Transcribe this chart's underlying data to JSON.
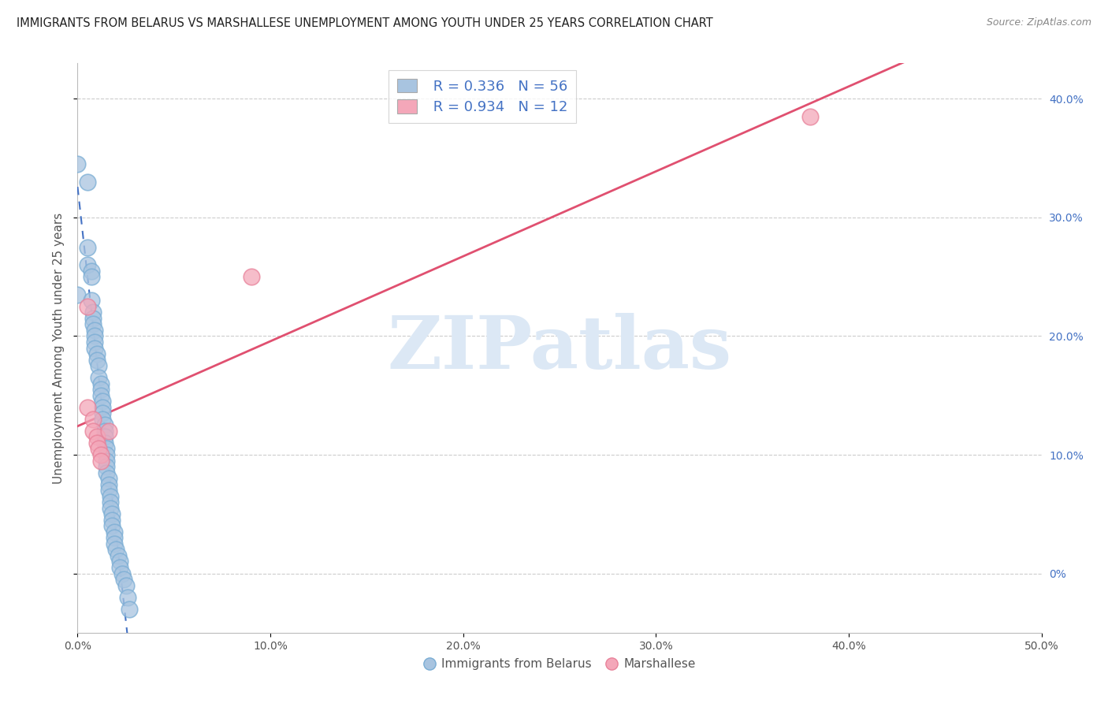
{
  "title": "IMMIGRANTS FROM BELARUS VS MARSHALLESE UNEMPLOYMENT AMONG YOUTH UNDER 25 YEARS CORRELATION CHART",
  "source": "Source: ZipAtlas.com",
  "ylabel": "Unemployment Among Youth under 25 years",
  "legend_labels": [
    "Immigrants from Belarus",
    "Marshallese"
  ],
  "legend_r": [
    0.336,
    0.934
  ],
  "legend_n": [
    56,
    12
  ],
  "blue_color": "#a8c4e0",
  "blue_edge_color": "#7aadd4",
  "pink_color": "#f4a7b9",
  "pink_edge_color": "#e8829a",
  "blue_line_color": "#4472c4",
  "pink_line_color": "#e05070",
  "watermark_text": "ZIPatlas",
  "watermark_color": "#dce8f5",
  "blue_dots": [
    [
      0.0,
      0.345
    ],
    [
      0.0,
      0.235
    ],
    [
      0.005,
      0.33
    ],
    [
      0.005,
      0.275
    ],
    [
      0.005,
      0.26
    ],
    [
      0.007,
      0.255
    ],
    [
      0.007,
      0.25
    ],
    [
      0.007,
      0.23
    ],
    [
      0.008,
      0.22
    ],
    [
      0.008,
      0.215
    ],
    [
      0.008,
      0.21
    ],
    [
      0.009,
      0.205
    ],
    [
      0.009,
      0.2
    ],
    [
      0.009,
      0.195
    ],
    [
      0.009,
      0.19
    ],
    [
      0.01,
      0.185
    ],
    [
      0.01,
      0.18
    ],
    [
      0.011,
      0.175
    ],
    [
      0.011,
      0.165
    ],
    [
      0.012,
      0.16
    ],
    [
      0.012,
      0.155
    ],
    [
      0.012,
      0.15
    ],
    [
      0.013,
      0.145
    ],
    [
      0.013,
      0.14
    ],
    [
      0.013,
      0.135
    ],
    [
      0.013,
      0.13
    ],
    [
      0.014,
      0.125
    ],
    [
      0.014,
      0.12
    ],
    [
      0.014,
      0.115
    ],
    [
      0.014,
      0.11
    ],
    [
      0.015,
      0.105
    ],
    [
      0.015,
      0.1
    ],
    [
      0.015,
      0.095
    ],
    [
      0.015,
      0.09
    ],
    [
      0.015,
      0.085
    ],
    [
      0.016,
      0.08
    ],
    [
      0.016,
      0.075
    ],
    [
      0.016,
      0.07
    ],
    [
      0.017,
      0.065
    ],
    [
      0.017,
      0.06
    ],
    [
      0.017,
      0.055
    ],
    [
      0.018,
      0.05
    ],
    [
      0.018,
      0.045
    ],
    [
      0.018,
      0.04
    ],
    [
      0.019,
      0.035
    ],
    [
      0.019,
      0.03
    ],
    [
      0.019,
      0.025
    ],
    [
      0.02,
      0.02
    ],
    [
      0.021,
      0.015
    ],
    [
      0.022,
      0.01
    ],
    [
      0.022,
      0.005
    ],
    [
      0.023,
      0.0
    ],
    [
      0.024,
      -0.005
    ],
    [
      0.025,
      -0.01
    ],
    [
      0.026,
      -0.02
    ],
    [
      0.027,
      -0.03
    ]
  ],
  "pink_dots": [
    [
      0.005,
      0.225
    ],
    [
      0.005,
      0.14
    ],
    [
      0.008,
      0.13
    ],
    [
      0.008,
      0.12
    ],
    [
      0.01,
      0.115
    ],
    [
      0.01,
      0.11
    ],
    [
      0.011,
      0.105
    ],
    [
      0.012,
      0.1
    ],
    [
      0.012,
      0.095
    ],
    [
      0.016,
      0.12
    ],
    [
      0.38,
      0.385
    ],
    [
      0.09,
      0.25
    ]
  ],
  "xlim": [
    0.0,
    0.5
  ],
  "ylim": [
    -0.05,
    0.43
  ],
  "xticks": [
    0.0,
    0.1,
    0.2,
    0.3,
    0.4,
    0.5
  ],
  "yticks": [
    0.0,
    0.1,
    0.2,
    0.3,
    0.4
  ],
  "ytick_right_labels": [
    "0%",
    "10.0%",
    "20.0%",
    "30.0%",
    "40.0%"
  ],
  "xtick_labels": [
    "0.0%",
    "10.0%",
    "20.0%",
    "30.0%",
    "40.0%",
    "50.0%"
  ],
  "figsize": [
    14.06,
    8.92
  ],
  "dpi": 100
}
